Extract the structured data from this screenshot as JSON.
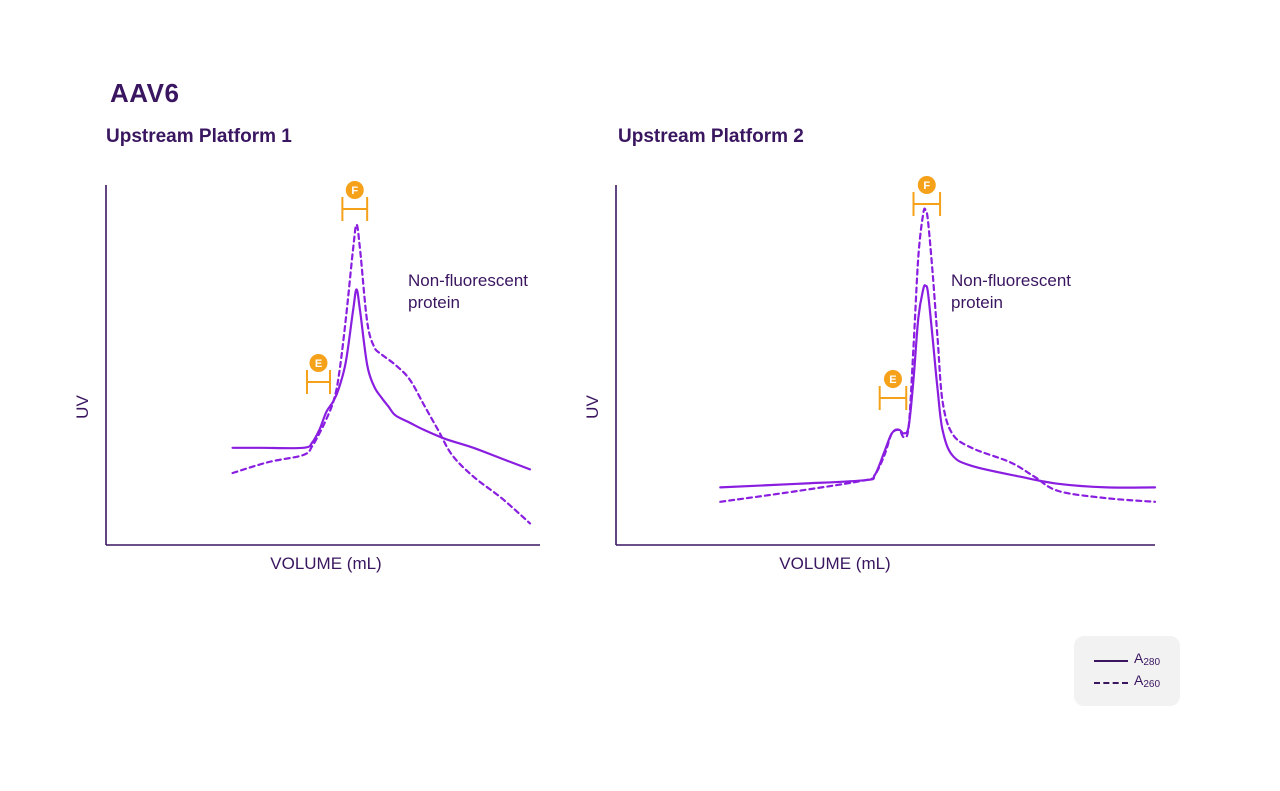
{
  "title": "AAV6",
  "colors": {
    "line": "#8a1ee0",
    "marker": "#f5a11a",
    "text": "#3a1560",
    "axis": "#3a1560"
  },
  "legend": [
    {
      "base": "A",
      "sub": "280",
      "style": "solid"
    },
    {
      "base": "A",
      "sub": "260",
      "style": "dashed"
    }
  ],
  "chart_data": [
    {
      "type": "line",
      "title": "Upstream Platform 1",
      "xlabel": "VOLUME (mL)",
      "ylabel": "UV",
      "xlim": [
        0,
        100
      ],
      "ylim": [
        0,
        100
      ],
      "annotation": "Non-fluorescent\nprotein",
      "fractions": [
        {
          "label": "F",
          "x0": 47,
          "x1": 54
        },
        {
          "label": "E",
          "x0": 37,
          "x1": 43.5
        }
      ],
      "series": [
        {
          "name": "A280",
          "style": "solid",
          "x": [
            16,
            24,
            36,
            38.5,
            40.5,
            42.5,
            44.5,
            46,
            48,
            50,
            51,
            52,
            54,
            56,
            58,
            60,
            62,
            66,
            70,
            76,
            84,
            92,
            100
          ],
          "y": [
            27,
            27,
            27,
            28.5,
            32,
            37,
            40,
            43.5,
            51,
            65,
            71,
            65,
            50,
            44,
            41,
            38.5,
            36,
            34,
            32,
            29.5,
            27,
            24,
            21
          ]
        },
        {
          "name": "A260",
          "style": "dashed",
          "x": [
            16,
            26,
            36,
            38.5,
            40.5,
            42.5,
            44.5,
            46,
            48,
            50,
            51,
            52,
            54,
            56,
            58,
            62,
            66,
            70,
            74,
            78,
            84,
            92,
            100
          ],
          "y": [
            20,
            23,
            25,
            27.5,
            31,
            35,
            40,
            47,
            63,
            82,
            89,
            82,
            62,
            55,
            53,
            50,
            46,
            39,
            32,
            25,
            19,
            13,
            6
          ]
        }
      ]
    },
    {
      "type": "line",
      "title": "Upstream Platform 2",
      "xlabel": "VOLUME (mL)",
      "ylabel": "UV",
      "xlim": [
        0,
        100
      ],
      "ylim": [
        0,
        100
      ],
      "annotation": "Non-fluorescent\nprotein",
      "fractions": [
        {
          "label": "F",
          "x0": 50,
          "x1": 55.5
        },
        {
          "label": "E",
          "x0": 43,
          "x1": 48.5
        }
      ],
      "series": [
        {
          "name": "A280",
          "style": "solid",
          "x": [
            10,
            26,
            40,
            42,
            44,
            45.5,
            47,
            48,
            49,
            50,
            51,
            52,
            52.5,
            53,
            54,
            55,
            56,
            58,
            62,
            72,
            80,
            90,
            100
          ],
          "y": [
            16,
            17,
            18,
            19.5,
            26,
            31,
            32,
            31,
            33,
            46,
            63,
            71,
            72,
            70,
            57,
            43,
            32,
            25,
            22,
            19,
            17,
            16,
            16
          ]
        },
        {
          "name": "A260",
          "style": "dashed",
          "x": [
            10,
            26,
            40,
            42,
            44,
            45.5,
            47,
            48,
            49,
            50,
            51,
            52,
            52.5,
            53,
            54,
            55,
            56,
            58,
            62,
            70,
            75,
            80,
            90,
            100
          ],
          "y": [
            12,
            15,
            18,
            19.5,
            25,
            31,
            32,
            30,
            33,
            55,
            80,
            92,
            93,
            90,
            75,
            57,
            40,
            31,
            27,
            23,
            19,
            15,
            13,
            12
          ]
        }
      ]
    }
  ]
}
